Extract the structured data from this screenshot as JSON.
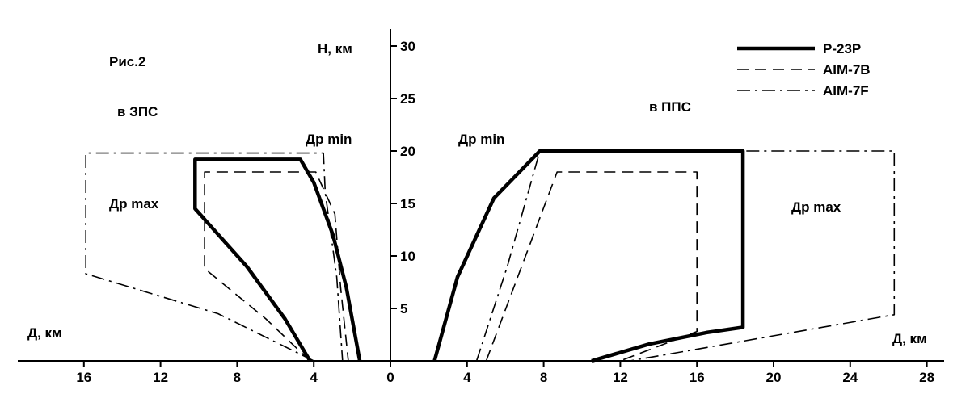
{
  "chart_data": {
    "type": "line",
    "figure_label": "Рис.2",
    "xlabel": "Д, км",
    "ylabel": "Н, км",
    "xlim": [
      -18,
      28
    ],
    "ylim": [
      0,
      32
    ],
    "x_ticks_left": [
      16,
      12,
      8,
      4
    ],
    "x_ticks_right": [
      0,
      4,
      8,
      12,
      16,
      20,
      24,
      28
    ],
    "y_ticks": [
      5,
      10,
      15,
      20,
      25,
      30
    ],
    "annotations": {
      "rear_hemisphere": "в ЗПС",
      "front_hemisphere": "в ППС",
      "dr_min_left": "Др min",
      "dr_min_right": "Др min",
      "dr_max_left": "Др max",
      "dr_max_right": "Др max",
      "xlabel_left": "Д, км"
    },
    "legend_position": "top-right",
    "series": [
      {
        "name": "Р-23Р",
        "style": "solid-thick",
        "rear_hemisphere": [
          [
            -4.2,
            0
          ],
          [
            -5.5,
            4
          ],
          [
            -7.5,
            9
          ],
          [
            -10.2,
            14.5
          ],
          [
            -10.2,
            19.2
          ],
          [
            -4.7,
            19.2
          ],
          [
            -4.0,
            17
          ],
          [
            -3.0,
            12
          ],
          [
            -2.3,
            7
          ],
          [
            -1.6,
            0
          ]
        ],
        "front_hemisphere": [
          [
            2.3,
            0
          ],
          [
            3.5,
            8
          ],
          [
            5.4,
            15.5
          ],
          [
            7.8,
            20
          ],
          [
            18.4,
            20
          ],
          [
            18.4,
            3.2
          ],
          [
            16.5,
            2.7
          ],
          [
            13.5,
            1.6
          ],
          [
            10.5,
            0
          ]
        ]
      },
      {
        "name": "AIM-7B",
        "style": "dashed",
        "rear_hemisphere": [
          [
            -4.2,
            0
          ],
          [
            -6.5,
            4
          ],
          [
            -9.7,
            8.8
          ],
          [
            -9.7,
            18
          ],
          [
            -3.9,
            18
          ],
          [
            -2.9,
            14
          ],
          [
            -2.6,
            7
          ],
          [
            -2.2,
            0
          ]
        ],
        "front_hemisphere": [
          [
            5.0,
            0
          ],
          [
            8.7,
            18
          ],
          [
            16.0,
            18
          ],
          [
            16.0,
            2.8
          ],
          [
            12.0,
            0
          ]
        ]
      },
      {
        "name": "AIM-7F",
        "style": "dash-dot",
        "rear_hemisphere": [
          [
            -4.0,
            0
          ],
          [
            -9.0,
            4.5
          ],
          [
            -15.9,
            8.3
          ],
          [
            -15.9,
            19.8
          ],
          [
            -3.5,
            19.8
          ],
          [
            -3.4,
            16
          ],
          [
            -2.8,
            8
          ],
          [
            -2.5,
            0
          ]
        ],
        "front_hemisphere": [
          [
            4.5,
            0
          ],
          [
            6.1,
            9
          ],
          [
            7.8,
            20
          ],
          [
            26.3,
            20
          ],
          [
            26.3,
            4.4
          ],
          [
            12.5,
            0
          ]
        ]
      }
    ]
  }
}
